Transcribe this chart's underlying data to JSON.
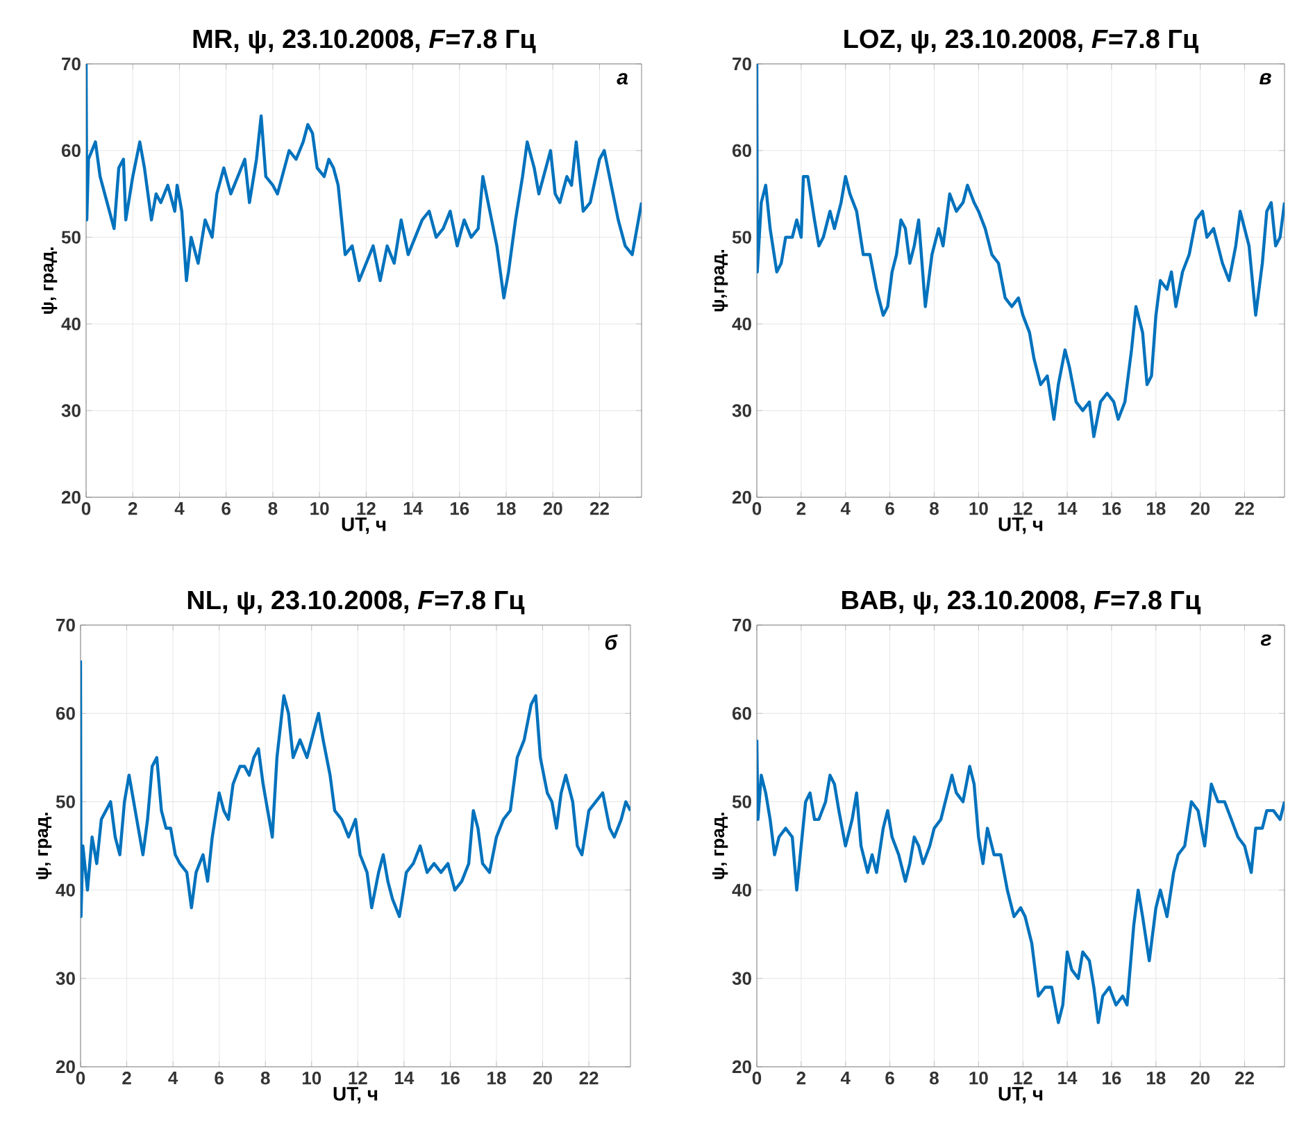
{
  "chart_data": [
    {
      "type": "line",
      "title": "MR, ψ, 23.10.2008, *F*=7.8 Гц",
      "xlabel": "UT, ч",
      "ylabel": "ψ, град.",
      "annotations": [
        "а"
      ],
      "xlim": [
        0,
        23.8
      ],
      "xticks": [
        0,
        2,
        4,
        6,
        8,
        10,
        12,
        14,
        16,
        18,
        20,
        22
      ],
      "ylim": [
        20,
        70
      ],
      "yticks": [
        20,
        30,
        40,
        50,
        60,
        70
      ],
      "grid": true,
      "line_style": "solid",
      "series": [
        {
          "color": "#0072bd",
          "x": [
            0,
            0.03,
            0.1,
            0.4,
            0.6,
            0.9,
            1.2,
            1.4,
            1.6,
            1.7,
            2.0,
            2.3,
            2.5,
            2.8,
            3.0,
            3.2,
            3.5,
            3.8,
            3.9,
            4.1,
            4.3,
            4.5,
            4.8,
            5.1,
            5.4,
            5.6,
            5.9,
            6.2,
            6.5,
            6.8,
            7.0,
            7.3,
            7.5,
            7.7,
            8.0,
            8.2,
            8.5,
            8.7,
            9.0,
            9.3,
            9.5,
            9.7,
            9.9,
            10.2,
            10.4,
            10.6,
            10.8,
            11.1,
            11.4,
            11.7,
            12.0,
            12.3,
            12.6,
            12.9,
            13.2,
            13.5,
            13.8,
            14.1,
            14.4,
            14.7,
            15.0,
            15.3,
            15.6,
            15.9,
            16.2,
            16.5,
            16.8,
            17.0,
            17.3,
            17.6,
            17.9,
            18.1,
            18.4,
            18.7,
            18.9,
            19.2,
            19.4,
            19.7,
            19.9,
            20.1,
            20.3,
            20.6,
            20.8,
            21.0,
            21.3,
            21.6,
            22.0,
            22.2,
            22.5,
            22.8,
            23.1,
            23.4,
            23.6,
            23.8
          ],
          "values": [
            70,
            52,
            59,
            61,
            57,
            54,
            51,
            58,
            59,
            52,
            57,
            61,
            58,
            52,
            55,
            54,
            56,
            53,
            56,
            53,
            45,
            50,
            47,
            52,
            50,
            55,
            58,
            55,
            57,
            59,
            54,
            59,
            64,
            57,
            56,
            55,
            58,
            60,
            59,
            61,
            63,
            62,
            58,
            57,
            59,
            58,
            56,
            48,
            49,
            45,
            47,
            49,
            45,
            49,
            47,
            52,
            48,
            50,
            52,
            53,
            50,
            51,
            53,
            49,
            52,
            50,
            51,
            57,
            53,
            49,
            43,
            46,
            52,
            57,
            61,
            58,
            55,
            58,
            60,
            55,
            54,
            57,
            56,
            61,
            53,
            54,
            59,
            60,
            56,
            52,
            49,
            48,
            51,
            54
          ]
        }
      ]
    },
    {
      "type": "line",
      "title": "LOZ, ψ, 23.10.2008, *F*=7.8 Гц",
      "xlabel": "UT, ч",
      "ylabel": "ψ,град.",
      "annotations": [
        "в"
      ],
      "xlim": [
        0,
        23.8
      ],
      "xticks": [
        0,
        2,
        4,
        6,
        8,
        10,
        12,
        14,
        16,
        18,
        20,
        22
      ],
      "ylim": [
        20,
        70
      ],
      "yticks": [
        20,
        30,
        40,
        50,
        60,
        70
      ],
      "grid": true,
      "line_style": "solid",
      "series": [
        {
          "color": "#0072bd",
          "x": [
            0,
            0.02,
            0.2,
            0.4,
            0.6,
            0.9,
            1.1,
            1.3,
            1.6,
            1.8,
            2.0,
            2.1,
            2.3,
            2.6,
            2.8,
            3.0,
            3.3,
            3.5,
            3.8,
            4.0,
            4.2,
            4.5,
            4.8,
            5.1,
            5.4,
            5.7,
            5.9,
            6.1,
            6.3,
            6.5,
            6.7,
            6.9,
            7.1,
            7.3,
            7.6,
            7.9,
            8.2,
            8.4,
            8.7,
            9.0,
            9.3,
            9.5,
            9.8,
            10.0,
            10.3,
            10.6,
            10.9,
            11.2,
            11.5,
            11.8,
            12.0,
            12.3,
            12.5,
            12.8,
            13.1,
            13.4,
            13.6,
            13.9,
            14.1,
            14.4,
            14.7,
            15.0,
            15.2,
            15.5,
            15.8,
            16.1,
            16.3,
            16.6,
            16.9,
            17.1,
            17.4,
            17.6,
            17.8,
            18.0,
            18.2,
            18.5,
            18.7,
            18.9,
            19.2,
            19.5,
            19.8,
            20.1,
            20.3,
            20.6,
            20.8,
            21.0,
            21.3,
            21.6,
            21.8,
            22.0,
            22.2,
            22.5,
            22.8,
            23.0,
            23.2,
            23.4,
            23.6,
            23.8
          ],
          "values": [
            70,
            46,
            54,
            56,
            51,
            46,
            47,
            50,
            50,
            52,
            50,
            57,
            57,
            52,
            49,
            50,
            53,
            51,
            54,
            57,
            55,
            53,
            48,
            48,
            44,
            41,
            42,
            46,
            48,
            52,
            51,
            47,
            49,
            52,
            42,
            48,
            51,
            49,
            55,
            53,
            54,
            56,
            54,
            53,
            51,
            48,
            47,
            43,
            42,
            43,
            41,
            39,
            36,
            33,
            34,
            29,
            33,
            37,
            35,
            31,
            30,
            31,
            27,
            31,
            32,
            31,
            29,
            31,
            37,
            42,
            39,
            33,
            34,
            41,
            45,
            44,
            46,
            42,
            46,
            48,
            52,
            53,
            50,
            51,
            49,
            47,
            45,
            49,
            53,
            51,
            49,
            41,
            47,
            53,
            54,
            49,
            50,
            54
          ]
        }
      ]
    },
    {
      "type": "line",
      "title": "NL, ψ, 23.10.2008, *F*=7.8 Гц",
      "xlabel": "UT, ч",
      "ylabel": "ψ, град.",
      "annotations": [
        "б"
      ],
      "xlim": [
        0,
        23.8
      ],
      "xticks": [
        0,
        2,
        4,
        6,
        8,
        10,
        12,
        14,
        16,
        18,
        20,
        22
      ],
      "ylim": [
        20,
        70
      ],
      "yticks": [
        20,
        30,
        40,
        50,
        60,
        70
      ],
      "grid": true,
      "line_style": "solid",
      "series": [
        {
          "color": "#0072bd",
          "x": [
            0,
            0.02,
            0.1,
            0.3,
            0.5,
            0.7,
            0.9,
            1.1,
            1.3,
            1.5,
            1.7,
            1.9,
            2.1,
            2.3,
            2.5,
            2.7,
            2.9,
            3.1,
            3.3,
            3.5,
            3.7,
            3.9,
            4.1,
            4.3,
            4.6,
            4.8,
            5.0,
            5.3,
            5.5,
            5.7,
            6.0,
            6.2,
            6.4,
            6.6,
            6.9,
            7.1,
            7.3,
            7.5,
            7.7,
            7.9,
            8.1,
            8.3,
            8.5,
            8.8,
            9.0,
            9.2,
            9.5,
            9.8,
            10.1,
            10.3,
            10.5,
            10.8,
            11.0,
            11.3,
            11.6,
            11.9,
            12.1,
            12.4,
            12.6,
            12.9,
            13.1,
            13.3,
            13.5,
            13.8,
            14.1,
            14.4,
            14.7,
            15.0,
            15.3,
            15.6,
            15.9,
            16.2,
            16.5,
            16.8,
            17.0,
            17.2,
            17.4,
            17.7,
            18.0,
            18.3,
            18.6,
            18.9,
            19.2,
            19.5,
            19.7,
            19.9,
            20.2,
            20.4,
            20.6,
            20.8,
            21.0,
            21.3,
            21.5,
            21.7,
            22.0,
            22.3,
            22.6,
            22.9,
            23.1,
            23.4,
            23.6,
            23.8
          ],
          "values": [
            66,
            37,
            45,
            40,
            46,
            43,
            48,
            49,
            50,
            46,
            44,
            50,
            53,
            50,
            47,
            44,
            48,
            54,
            55,
            49,
            47,
            47,
            44,
            43,
            42,
            38,
            42,
            44,
            41,
            46,
            51,
            49,
            48,
            52,
            54,
            54,
            53,
            55,
            56,
            52,
            49,
            46,
            55,
            62,
            60,
            55,
            57,
            55,
            58,
            60,
            57,
            53,
            49,
            48,
            46,
            48,
            44,
            42,
            38,
            42,
            44,
            41,
            39,
            37,
            42,
            43,
            45,
            42,
            43,
            42,
            43,
            40,
            41,
            43,
            49,
            47,
            43,
            42,
            46,
            48,
            49,
            55,
            57,
            61,
            62,
            55,
            51,
            50,
            47,
            51,
            53,
            50,
            45,
            44,
            49,
            50,
            51,
            47,
            46,
            48,
            50,
            49
          ]
        }
      ]
    },
    {
      "type": "line",
      "title": "BAB, ψ, 23.10.2008, *F*=7.8 Гц",
      "xlabel": "UT, ч",
      "ylabel": "ψ, град.",
      "annotations": [
        "г"
      ],
      "xlim": [
        0,
        23.8
      ],
      "xticks": [
        0,
        2,
        4,
        6,
        8,
        10,
        12,
        14,
        16,
        18,
        20,
        22
      ],
      "ylim": [
        20,
        70
      ],
      "yticks": [
        20,
        30,
        40,
        50,
        60,
        70
      ],
      "grid": true,
      "line_style": "solid",
      "series": [
        {
          "color": "#0072bd",
          "x": [
            0,
            0.05,
            0.2,
            0.4,
            0.6,
            0.8,
            1.0,
            1.3,
            1.6,
            1.8,
            2.0,
            2.2,
            2.4,
            2.6,
            2.8,
            3.1,
            3.3,
            3.5,
            3.7,
            4.0,
            4.3,
            4.5,
            4.7,
            5.0,
            5.2,
            5.4,
            5.7,
            5.9,
            6.1,
            6.4,
            6.7,
            6.9,
            7.1,
            7.3,
            7.5,
            7.8,
            8.0,
            8.3,
            8.6,
            8.8,
            9.0,
            9.3,
            9.6,
            9.8,
            10.0,
            10.2,
            10.4,
            10.7,
            11.0,
            11.3,
            11.6,
            11.9,
            12.1,
            12.4,
            12.7,
            13.0,
            13.3,
            13.6,
            13.8,
            14.0,
            14.2,
            14.5,
            14.7,
            15.0,
            15.2,
            15.4,
            15.6,
            15.9,
            16.2,
            16.5,
            16.7,
            17.0,
            17.2,
            17.4,
            17.7,
            18.0,
            18.2,
            18.5,
            18.8,
            19.0,
            19.3,
            19.6,
            19.9,
            20.2,
            20.5,
            20.8,
            21.1,
            21.4,
            21.7,
            22.0,
            22.3,
            22.5,
            22.8,
            23.0,
            23.3,
            23.6,
            23.8
          ],
          "values": [
            57,
            48,
            53,
            51,
            48,
            44,
            46,
            47,
            46,
            40,
            45,
            50,
            51,
            48,
            48,
            50,
            53,
            52,
            49,
            45,
            48,
            51,
            45,
            42,
            44,
            42,
            47,
            49,
            46,
            44,
            41,
            43,
            46,
            45,
            43,
            45,
            47,
            48,
            51,
            53,
            51,
            50,
            54,
            52,
            46,
            43,
            47,
            44,
            44,
            40,
            37,
            38,
            37,
            34,
            28,
            29,
            29,
            25,
            27,
            33,
            31,
            30,
            33,
            32,
            29,
            25,
            28,
            29,
            27,
            28,
            27,
            36,
            40,
            37,
            32,
            38,
            40,
            37,
            42,
            44,
            45,
            50,
            49,
            45,
            52,
            50,
            50,
            48,
            46,
            45,
            42,
            47,
            47,
            49,
            49,
            48,
            50
          ]
        }
      ]
    }
  ]
}
